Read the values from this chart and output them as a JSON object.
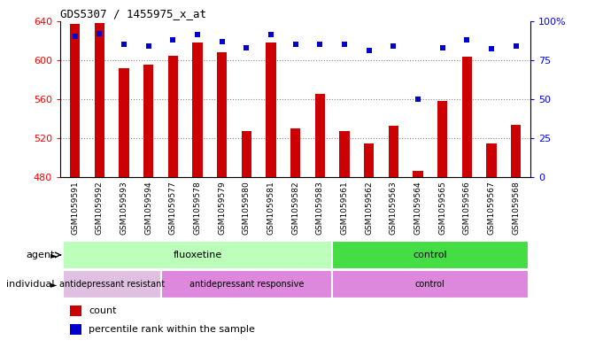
{
  "title": "GDS5307 / 1455975_x_at",
  "samples": [
    "GSM1059591",
    "GSM1059592",
    "GSM1059593",
    "GSM1059594",
    "GSM1059577",
    "GSM1059578",
    "GSM1059579",
    "GSM1059580",
    "GSM1059581",
    "GSM1059582",
    "GSM1059583",
    "GSM1059561",
    "GSM1059562",
    "GSM1059563",
    "GSM1059564",
    "GSM1059565",
    "GSM1059566",
    "GSM1059567",
    "GSM1059568"
  ],
  "counts": [
    637,
    638,
    592,
    595,
    604,
    618,
    608,
    527,
    618,
    530,
    565,
    527,
    515,
    533,
    487,
    558,
    603,
    515,
    534
  ],
  "percentiles": [
    90,
    92,
    85,
    84,
    88,
    91,
    87,
    83,
    91,
    85,
    85,
    85,
    81,
    84,
    50,
    83,
    88,
    82,
    84
  ],
  "ymin": 480,
  "ymax": 640,
  "y_ticks": [
    480,
    520,
    560,
    600,
    640
  ],
  "y_right_ticks": [
    0,
    25,
    50,
    75,
    100
  ],
  "bar_color": "#cc0000",
  "dot_color": "#0000cc",
  "plot_bg": "#ffffff",
  "tick_bg": "#d8d8d8",
  "grid_color": "#888888",
  "agent_fluoxetine_color": "#bbffbb",
  "agent_control_color": "#44dd44",
  "indiv_resistant_color": "#e8c8e8",
  "indiv_responsive_color": "#dd88dd",
  "indiv_control_color": "#dd88dd",
  "agent_groups": [
    {
      "label": "fluoxetine",
      "start": 0,
      "end": 11,
      "color": "#bbffbb"
    },
    {
      "label": "control",
      "start": 11,
      "end": 19,
      "color": "#44dd44"
    }
  ],
  "indiv_groups": [
    {
      "label": "antidepressant resistant",
      "start": 0,
      "end": 4,
      "color": "#e0c0e0"
    },
    {
      "label": "antidepressant responsive",
      "start": 4,
      "end": 11,
      "color": "#dd88dd"
    },
    {
      "label": "control",
      "start": 11,
      "end": 19,
      "color": "#dd88dd"
    }
  ],
  "legend_items": [
    {
      "color": "#cc0000",
      "label": "count"
    },
    {
      "color": "#0000cc",
      "label": "percentile rank within the sample"
    }
  ]
}
